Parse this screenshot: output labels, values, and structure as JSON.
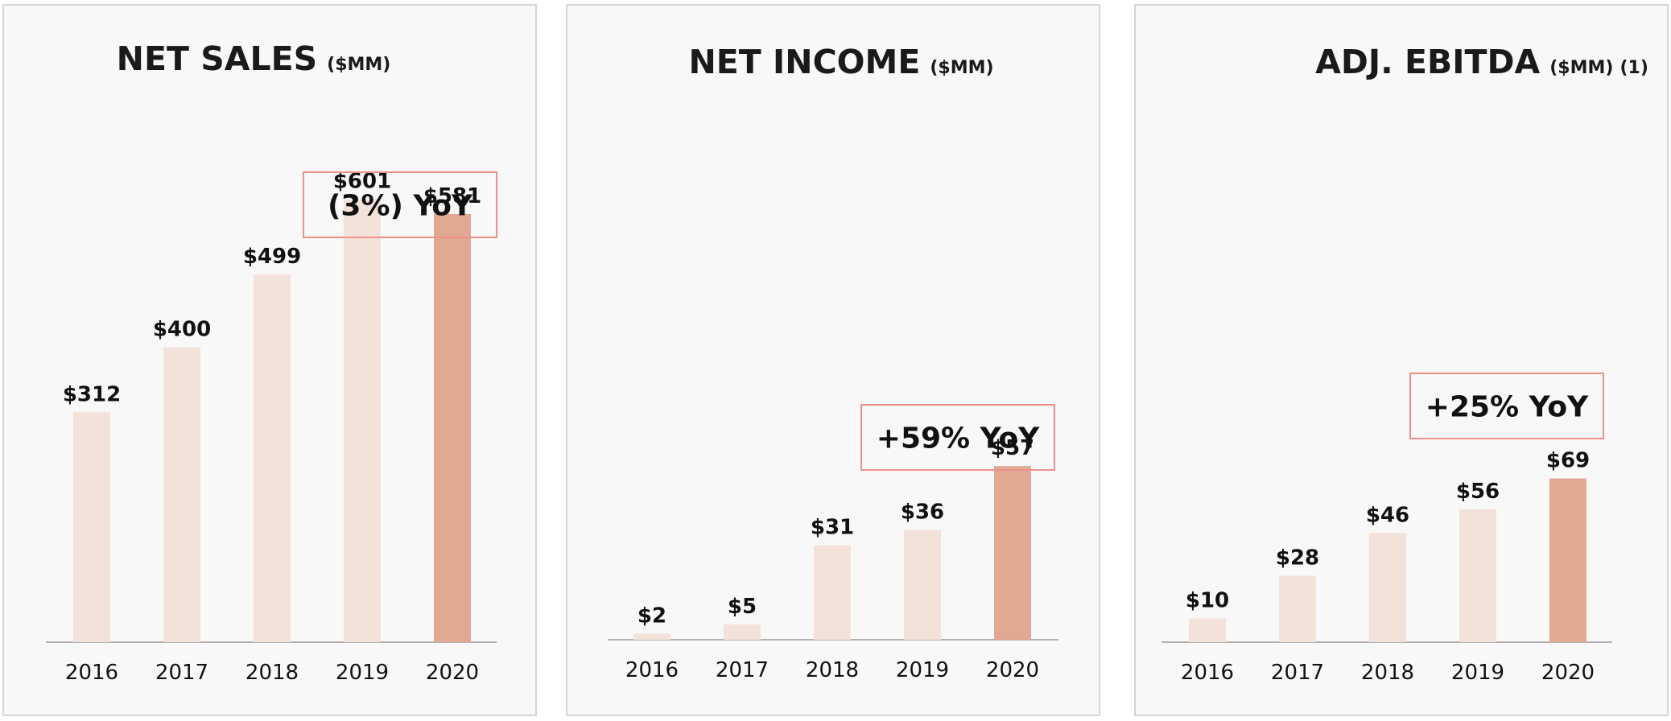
{
  "colors": {
    "bar_light": "#f3e2d9",
    "bar_highlight": "#e2a992",
    "box_border": "#ef8f8b",
    "axis": "#9a9a9a"
  },
  "chart_data": [
    {
      "type": "bar",
      "title": "NET SALES",
      "unit": "($MM)",
      "footnote": "",
      "categories": [
        "2016",
        "2017",
        "2018",
        "2019",
        "2020"
      ],
      "values": [
        312,
        400,
        499,
        601,
        581
      ],
      "value_labels": [
        "$312",
        "$400",
        "$499",
        "$601",
        "$581"
      ],
      "highlight_index": 4,
      "yoy": "(3%) YoY",
      "ylim": [
        0,
        760
      ],
      "xlabel": "",
      "ylabel": ""
    },
    {
      "type": "bar",
      "title": "NET INCOME",
      "unit": "($MM)",
      "footnote": "",
      "categories": [
        "2016",
        "2017",
        "2018",
        "2019",
        "2020"
      ],
      "values": [
        2,
        5,
        31,
        36,
        57
      ],
      "value_labels": [
        "$2",
        "$5",
        "$31",
        "$36",
        "$57"
      ],
      "highlight_index": 4,
      "yoy": "+59% YoY",
      "ylim": [
        0,
        183
      ],
      "xlabel": "",
      "ylabel": ""
    },
    {
      "type": "bar",
      "title": "ADJ. EBITDA",
      "unit": "($MM)",
      "footnote": "(1)",
      "categories": [
        "2016",
        "2017",
        "2018",
        "2019",
        "2020"
      ],
      "values": [
        10,
        28,
        46,
        56,
        69
      ],
      "value_labels": [
        "$10",
        "$28",
        "$46",
        "$56",
        "$69"
      ],
      "highlight_index": 4,
      "yoy": "+25% YoY",
      "ylim": [
        0,
        236
      ],
      "xlabel": "",
      "ylabel": ""
    }
  ]
}
